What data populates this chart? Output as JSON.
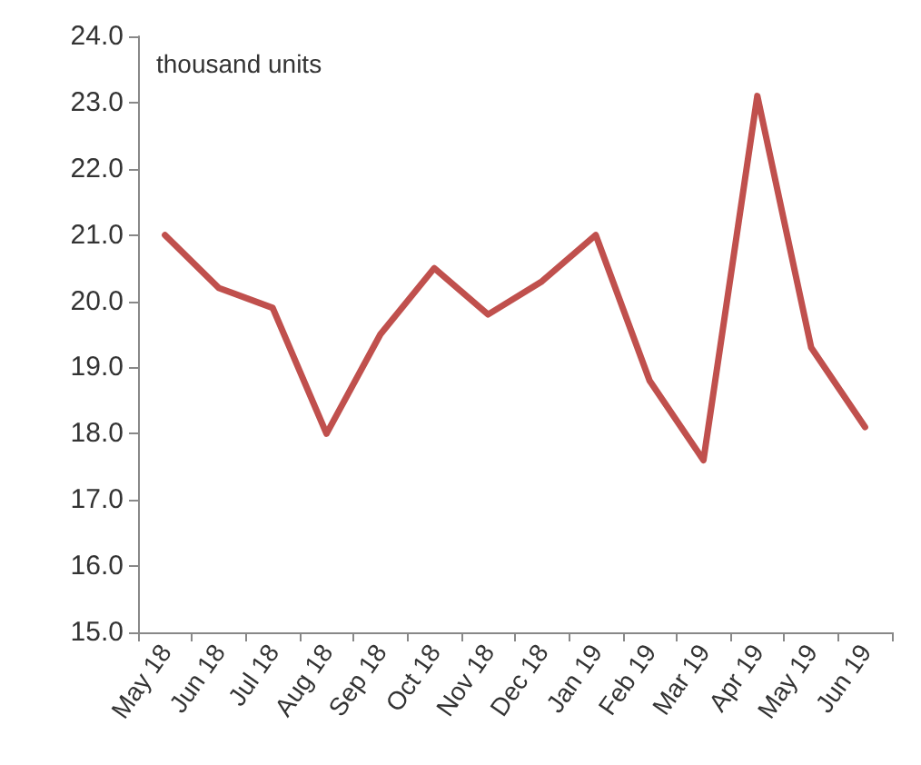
{
  "chart_data": {
    "type": "line",
    "ylabel": "thousand units",
    "categories": [
      "May 18",
      "Jun 18",
      "Jul 18",
      "Aug 18",
      "Sep 18",
      "Oct 18",
      "Nov 18",
      "Dec 18",
      "Jan 19",
      "Feb 19",
      "Mar 19",
      "Apr 19",
      "May 19",
      "Jun 19"
    ],
    "series": [
      {
        "color": "#c0504d",
        "values": [
          21.0,
          20.2,
          19.9,
          18.0,
          19.5,
          20.5,
          19.8,
          20.3,
          21.0,
          18.8,
          17.6,
          23.1,
          19.3,
          18.1
        ]
      }
    ],
    "ylim": [
      15,
      24
    ],
    "yticks": [
      {
        "value": 15,
        "label": "15.0"
      },
      {
        "value": 16,
        "label": "16.0"
      },
      {
        "value": 17,
        "label": "17.0"
      },
      {
        "value": 18,
        "label": "18.0"
      },
      {
        "value": 19,
        "label": "19.0"
      },
      {
        "value": 20,
        "label": "20.0"
      },
      {
        "value": 21,
        "label": "21.0"
      },
      {
        "value": 22,
        "label": "22.0"
      },
      {
        "value": 23,
        "label": "23.0"
      },
      {
        "value": 24,
        "label": "24.0"
      }
    ],
    "grid": false,
    "marker": "none",
    "line_style": "solid"
  }
}
